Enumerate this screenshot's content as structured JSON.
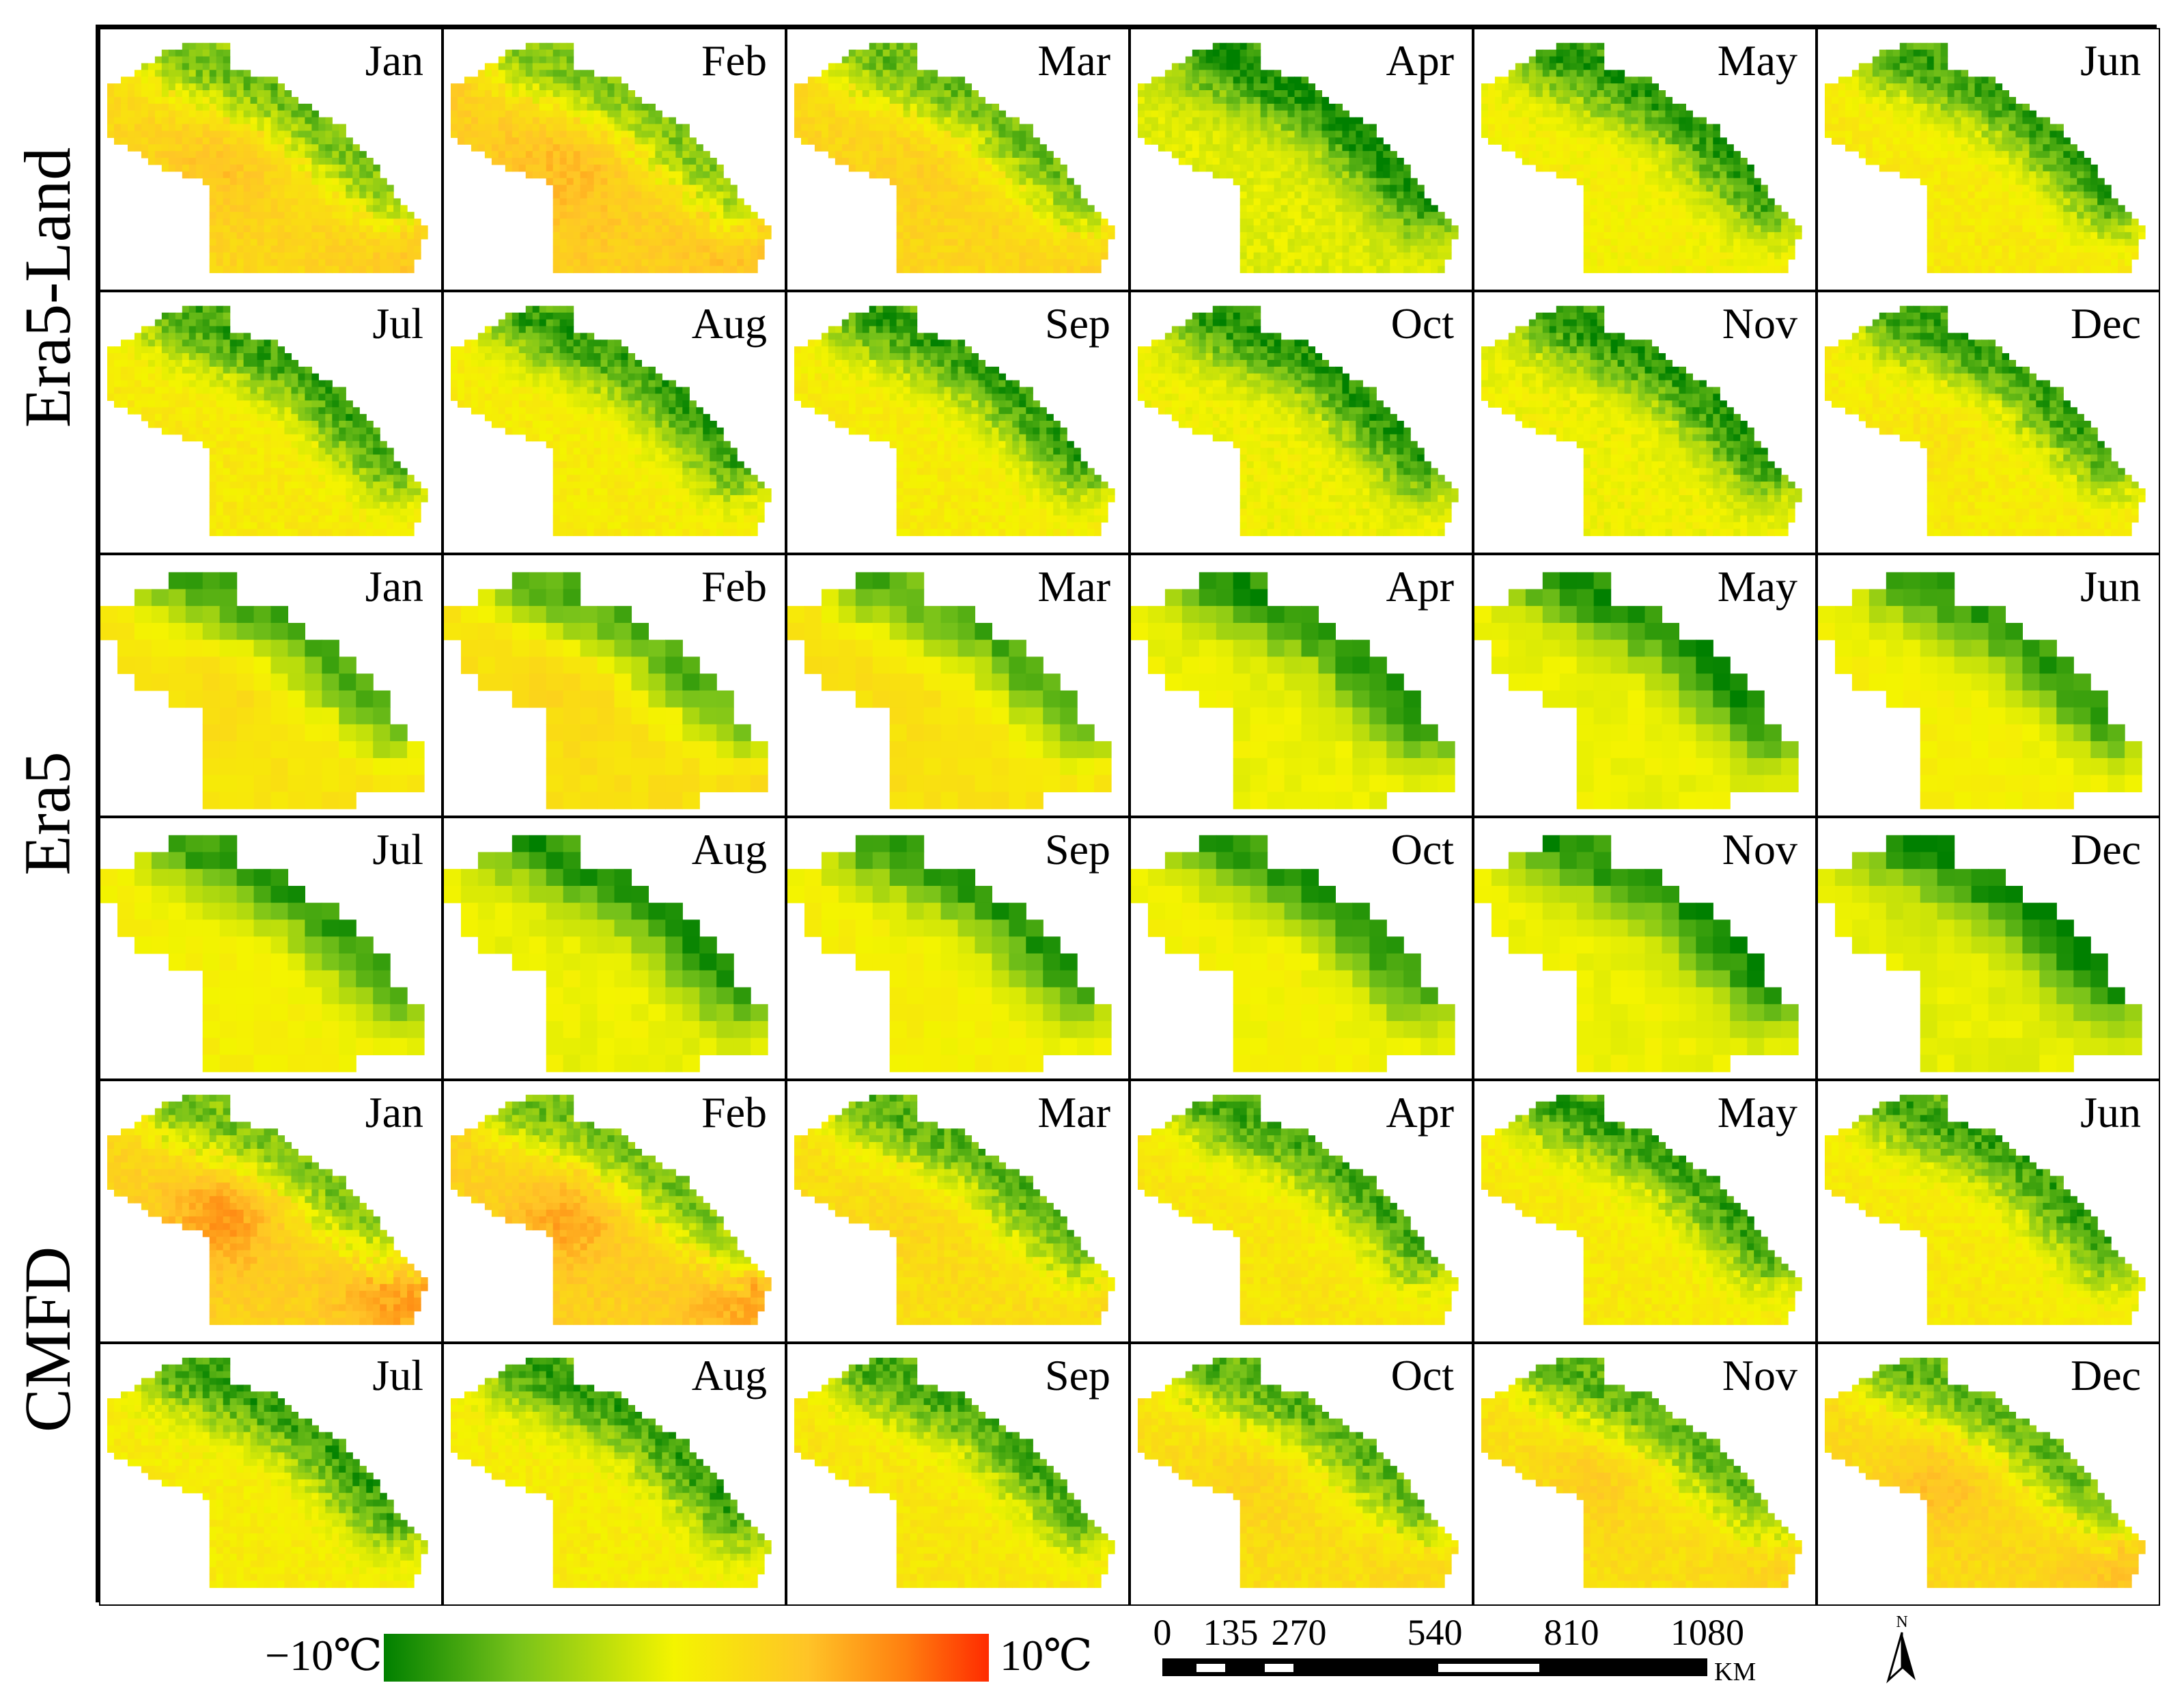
{
  "figure": {
    "row_groups": [
      "Era5-Land",
      "Era5",
      "CMFD"
    ],
    "month_rows": [
      [
        "Jan",
        "Feb",
        "Mar",
        "Apr",
        "May",
        "Jun"
      ],
      [
        "Jul",
        "Aug",
        "Sep",
        "Oct",
        "Nov",
        "Dec"
      ]
    ]
  },
  "colorbar": {
    "min_label": "−10℃",
    "max_label": "10℃",
    "min_value": -10,
    "max_value": 10,
    "colors": [
      "#008000",
      "#77c21a",
      "#f4f400",
      "#ffc427",
      "#ff8010",
      "#ff2b00"
    ]
  },
  "scale_bar": {
    "ticks": [
      "0",
      "135",
      "270",
      "540",
      "810",
      "1080"
    ],
    "tick_values": [
      0,
      135,
      270,
      540,
      810,
      1080
    ],
    "unit": "KM"
  },
  "north_arrow": {
    "label": "N",
    "icon": "north-arrow-icon"
  },
  "map_panels": [
    {
      "dataset": "Era5-Land",
      "month": "Jan",
      "mean_warmth": 0.62,
      "hotspot_intensity": 0.25
    },
    {
      "dataset": "Era5-Land",
      "month": "Feb",
      "mean_warmth": 0.66,
      "hotspot_intensity": 0.2
    },
    {
      "dataset": "Era5-Land",
      "month": "Mar",
      "mean_warmth": 0.62,
      "hotspot_intensity": 0.1
    },
    {
      "dataset": "Era5-Land",
      "month": "Apr",
      "mean_warmth": 0.44,
      "hotspot_intensity": 0.0
    },
    {
      "dataset": "Era5-Land",
      "month": "May",
      "mean_warmth": 0.5,
      "hotspot_intensity": 0.0
    },
    {
      "dataset": "Era5-Land",
      "month": "Jun",
      "mean_warmth": 0.53,
      "hotspot_intensity": 0.0
    },
    {
      "dataset": "Era5-Land",
      "month": "Jul",
      "mean_warmth": 0.53,
      "hotspot_intensity": 0.0
    },
    {
      "dataset": "Era5-Land",
      "month": "Aug",
      "mean_warmth": 0.52,
      "hotspot_intensity": 0.0
    },
    {
      "dataset": "Era5-Land",
      "month": "Sep",
      "mean_warmth": 0.52,
      "hotspot_intensity": 0.0
    },
    {
      "dataset": "Era5-Land",
      "month": "Oct",
      "mean_warmth": 0.48,
      "hotspot_intensity": 0.0
    },
    {
      "dataset": "Era5-Land",
      "month": "Nov",
      "mean_warmth": 0.48,
      "hotspot_intensity": 0.0
    },
    {
      "dataset": "Era5-Land",
      "month": "Dec",
      "mean_warmth": 0.52,
      "hotspot_intensity": 0.12
    },
    {
      "dataset": "Era5",
      "month": "Jan",
      "mean_warmth": 0.55,
      "hotspot_intensity": 0.15
    },
    {
      "dataset": "Era5",
      "month": "Feb",
      "mean_warmth": 0.57,
      "hotspot_intensity": 0.15
    },
    {
      "dataset": "Era5",
      "month": "Mar",
      "mean_warmth": 0.57,
      "hotspot_intensity": 0.0
    },
    {
      "dataset": "Era5",
      "month": "Apr",
      "mean_warmth": 0.47,
      "hotspot_intensity": 0.0
    },
    {
      "dataset": "Era5",
      "month": "May",
      "mean_warmth": 0.47,
      "hotspot_intensity": 0.0
    },
    {
      "dataset": "Era5",
      "month": "Jun",
      "mean_warmth": 0.5,
      "hotspot_intensity": 0.0
    },
    {
      "dataset": "Era5",
      "month": "Jul",
      "mean_warmth": 0.5,
      "hotspot_intensity": 0.0
    },
    {
      "dataset": "Era5",
      "month": "Aug",
      "mean_warmth": 0.47,
      "hotspot_intensity": 0.0
    },
    {
      "dataset": "Era5",
      "month": "Sep",
      "mean_warmth": 0.5,
      "hotspot_intensity": 0.0
    },
    {
      "dataset": "Era5",
      "month": "Oct",
      "mean_warmth": 0.49,
      "hotspot_intensity": 0.0
    },
    {
      "dataset": "Era5",
      "month": "Nov",
      "mean_warmth": 0.47,
      "hotspot_intensity": 0.0
    },
    {
      "dataset": "Era5",
      "month": "Dec",
      "mean_warmth": 0.45,
      "hotspot_intensity": 0.0
    },
    {
      "dataset": "CMFD",
      "month": "Jan",
      "mean_warmth": 0.64,
      "hotspot_intensity": 0.55
    },
    {
      "dataset": "CMFD",
      "month": "Feb",
      "mean_warmth": 0.64,
      "hotspot_intensity": 0.45
    },
    {
      "dataset": "CMFD",
      "month": "Mar",
      "mean_warmth": 0.58,
      "hotspot_intensity": 0.12
    },
    {
      "dataset": "CMFD",
      "month": "Apr",
      "mean_warmth": 0.55,
      "hotspot_intensity": 0.0
    },
    {
      "dataset": "CMFD",
      "month": "May",
      "mean_warmth": 0.53,
      "hotspot_intensity": 0.0
    },
    {
      "dataset": "CMFD",
      "month": "Jun",
      "mean_warmth": 0.53,
      "hotspot_intensity": 0.0
    },
    {
      "dataset": "CMFD",
      "month": "Jul",
      "mean_warmth": 0.52,
      "hotspot_intensity": 0.0
    },
    {
      "dataset": "CMFD",
      "month": "Aug",
      "mean_warmth": 0.52,
      "hotspot_intensity": 0.0
    },
    {
      "dataset": "CMFD",
      "month": "Sep",
      "mean_warmth": 0.55,
      "hotspot_intensity": 0.0
    },
    {
      "dataset": "CMFD",
      "month": "Oct",
      "mean_warmth": 0.58,
      "hotspot_intensity": 0.18
    },
    {
      "dataset": "CMFD",
      "month": "Nov",
      "mean_warmth": 0.58,
      "hotspot_intensity": 0.25
    },
    {
      "dataset": "CMFD",
      "month": "Dec",
      "mean_warmth": 0.6,
      "hotspot_intensity": 0.35
    }
  ]
}
